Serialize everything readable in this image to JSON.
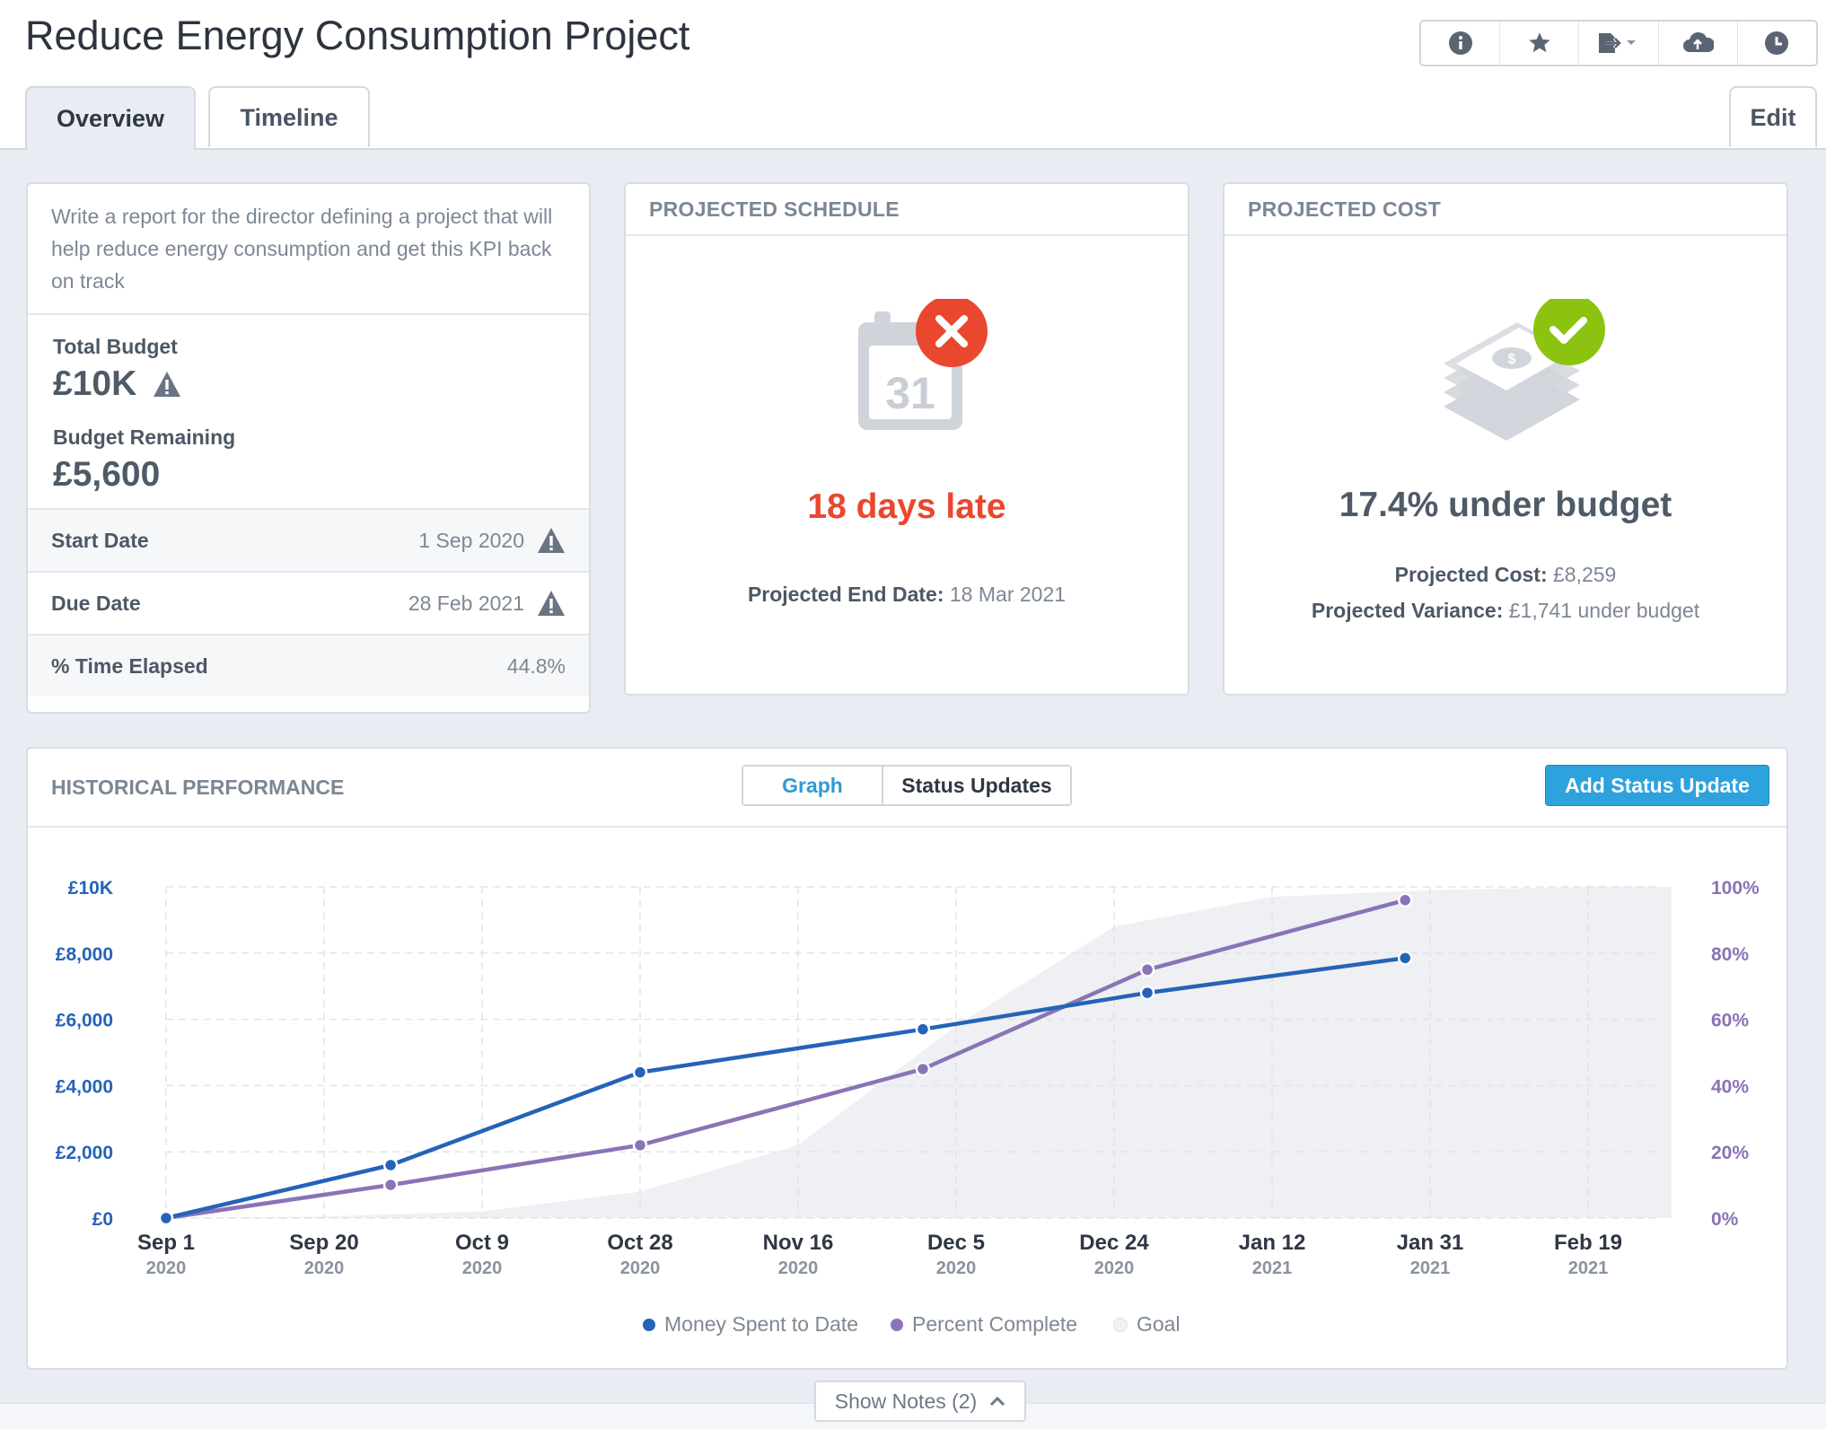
{
  "header": {
    "title": "Reduce Energy Consumption Project",
    "icons": [
      "info-icon",
      "star-icon",
      "export-icon",
      "cloud-upload-icon",
      "clock-icon"
    ]
  },
  "tabs": [
    {
      "label": "Overview",
      "active": true
    },
    {
      "label": "Timeline",
      "active": false
    }
  ],
  "edit_label": "Edit",
  "details": {
    "description": "Write a report for the director defining a project that will help reduce energy consumption and get this KPI back on track",
    "total_budget_label": "Total Budget",
    "total_budget_value": "£10K",
    "budget_remaining_label": "Budget Remaining",
    "budget_remaining_value": "£5,600",
    "rows": [
      {
        "label": "Start Date",
        "value": "1 Sep 2020",
        "warning": true
      },
      {
        "label": "Due Date",
        "value": "28 Feb 2021",
        "warning": true
      },
      {
        "label": "% Time Elapsed",
        "value": "44.8%",
        "warning": false
      }
    ]
  },
  "schedule": {
    "heading": "PROJECTED SCHEDULE",
    "calendar_day": "31",
    "status": "18 days late",
    "end_date_label": "Projected End Date:",
    "end_date_value": "18 Mar 2021"
  },
  "cost": {
    "heading": "PROJECTED COST",
    "status": "17.4% under budget",
    "cost_label": "Projected Cost:",
    "cost_value": "£8,259",
    "variance_label": "Projected Variance:",
    "variance_value": "£1,741 under budget"
  },
  "history": {
    "heading": "HISTORICAL PERFORMANCE",
    "toggle": {
      "graph": "Graph",
      "status_updates": "Status Updates",
      "active": "graph"
    },
    "add_button": "Add Status Update",
    "show_notes": "Show Notes (2)"
  },
  "colors": {
    "money": "#2563b8",
    "percent": "#8a73b6",
    "goal": "#eef0f3",
    "late": "#e9472e",
    "ok": "#8cc311",
    "accent": "#2ea2dd"
  },
  "chart_data": {
    "type": "line",
    "x_ticks": [
      {
        "label": "Sep 1",
        "year": "2020",
        "date": "2020-09-01"
      },
      {
        "label": "Sep 20",
        "year": "2020",
        "date": "2020-09-20"
      },
      {
        "label": "Oct 9",
        "year": "2020",
        "date": "2020-10-09"
      },
      {
        "label": "Oct 28",
        "year": "2020",
        "date": "2020-10-28"
      },
      {
        "label": "Nov 16",
        "year": "2020",
        "date": "2020-11-16"
      },
      {
        "label": "Dec 5",
        "year": "2020",
        "date": "2020-12-05"
      },
      {
        "label": "Dec 24",
        "year": "2020",
        "date": "2020-12-24"
      },
      {
        "label": "Jan 12",
        "year": "2021",
        "date": "2021-01-12"
      },
      {
        "label": "Jan 31",
        "year": "2021",
        "date": "2021-01-31"
      },
      {
        "label": "Feb 19",
        "year": "2021",
        "date": "2021-02-19"
      }
    ],
    "y_left_ticks": [
      "£0",
      "£2,000",
      "£4,000",
      "£6,000",
      "£8,000",
      "£10K"
    ],
    "y_right_ticks": [
      "0%",
      "20%",
      "40%",
      "60%",
      "80%",
      "100%"
    ],
    "ylim_left": [
      0,
      10000
    ],
    "ylim_right": [
      0,
      100
    ],
    "xlim": [
      "2020-09-01",
      "2021-03-01"
    ],
    "grid": true,
    "legend_position": "bottom-center",
    "series": [
      {
        "name": "Money Spent to Date",
        "axis": "left",
        "points": [
          {
            "x": "2020-09-01",
            "y": 0
          },
          {
            "x": "2020-09-28",
            "y": 1600
          },
          {
            "x": "2020-10-28",
            "y": 4400
          },
          {
            "x": "2020-12-01",
            "y": 5700
          },
          {
            "x": "2020-12-28",
            "y": 6800
          },
          {
            "x": "2021-01-28",
            "y": 7850
          }
        ]
      },
      {
        "name": "Percent Complete",
        "axis": "right",
        "points": [
          {
            "x": "2020-09-01",
            "y": 0
          },
          {
            "x": "2020-09-28",
            "y": 10
          },
          {
            "x": "2020-10-28",
            "y": 22
          },
          {
            "x": "2020-12-01",
            "y": 45
          },
          {
            "x": "2020-12-28",
            "y": 75
          },
          {
            "x": "2021-01-28",
            "y": 96
          }
        ]
      },
      {
        "name": "Goal",
        "axis": "right",
        "type": "area",
        "points": [
          {
            "x": "2020-09-01",
            "y": 0
          },
          {
            "x": "2020-09-20",
            "y": 0.5
          },
          {
            "x": "2020-10-09",
            "y": 2
          },
          {
            "x": "2020-10-28",
            "y": 8
          },
          {
            "x": "2020-11-16",
            "y": 22
          },
          {
            "x": "2020-12-05",
            "y": 58
          },
          {
            "x": "2020-12-24",
            "y": 88
          },
          {
            "x": "2021-01-12",
            "y": 97
          },
          {
            "x": "2021-01-31",
            "y": 99
          },
          {
            "x": "2021-02-19",
            "y": 100
          },
          {
            "x": "2021-03-01",
            "y": 100
          }
        ]
      }
    ]
  }
}
